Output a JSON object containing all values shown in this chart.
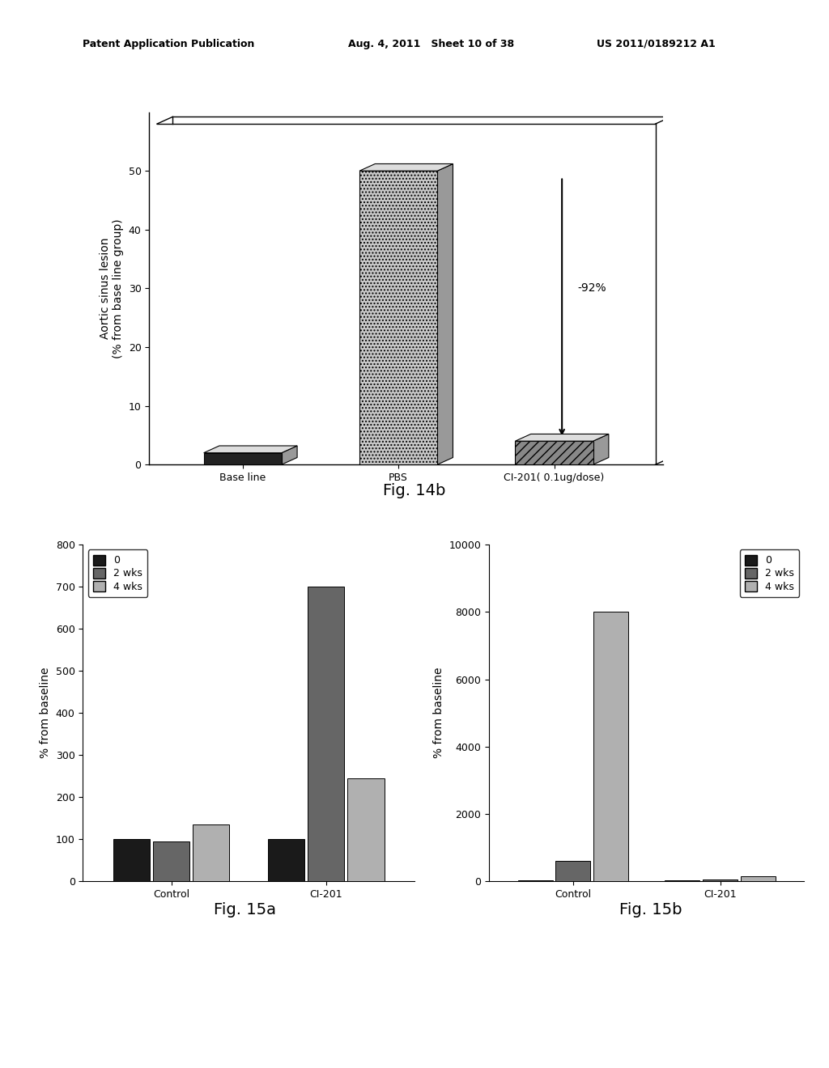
{
  "header_left": "Patent Application Publication",
  "header_mid": "Aug. 4, 2011   Sheet 10 of 38",
  "header_right": "US 2011/0189212 A1",
  "fig14b": {
    "title": "Fig. 14b",
    "ylabel": "Aortic sinus lesion\n(% from base line group)",
    "ylim": [
      0,
      60
    ],
    "yticks": [
      0,
      10,
      20,
      30,
      40,
      50
    ],
    "categories": [
      "Base line",
      "PBS",
      "CI-201( 0.1ug/dose)"
    ],
    "values": [
      2,
      50,
      4
    ],
    "annotation_text": "-92%"
  },
  "fig15a": {
    "title": "Fig. 15a",
    "ylabel": "% from baseline",
    "ylim": [
      0,
      800
    ],
    "yticks": [
      0,
      100,
      200,
      300,
      400,
      500,
      600,
      700,
      800
    ],
    "categories": [
      "Control",
      "CI-201"
    ],
    "legend_labels": [
      "0",
      "2 wks",
      "4 wks"
    ],
    "control_values": [
      100,
      95,
      135
    ],
    "ci201_values": [
      100,
      700,
      245
    ],
    "colors": [
      "#1a1a1a",
      "#666666",
      "#b0b0b0"
    ]
  },
  "fig15b": {
    "title": "Fig. 15b",
    "ylabel": "% from baseline",
    "ylim": [
      0,
      10000
    ],
    "yticks": [
      0,
      2000,
      4000,
      6000,
      8000,
      10000
    ],
    "categories": [
      "Control",
      "CI-201"
    ],
    "legend_labels": [
      "0",
      "2 wks",
      "4 wks"
    ],
    "control_values": [
      30,
      600,
      8000
    ],
    "ci201_values": [
      15,
      50,
      150
    ],
    "colors": [
      "#1a1a1a",
      "#666666",
      "#b0b0b0"
    ]
  }
}
